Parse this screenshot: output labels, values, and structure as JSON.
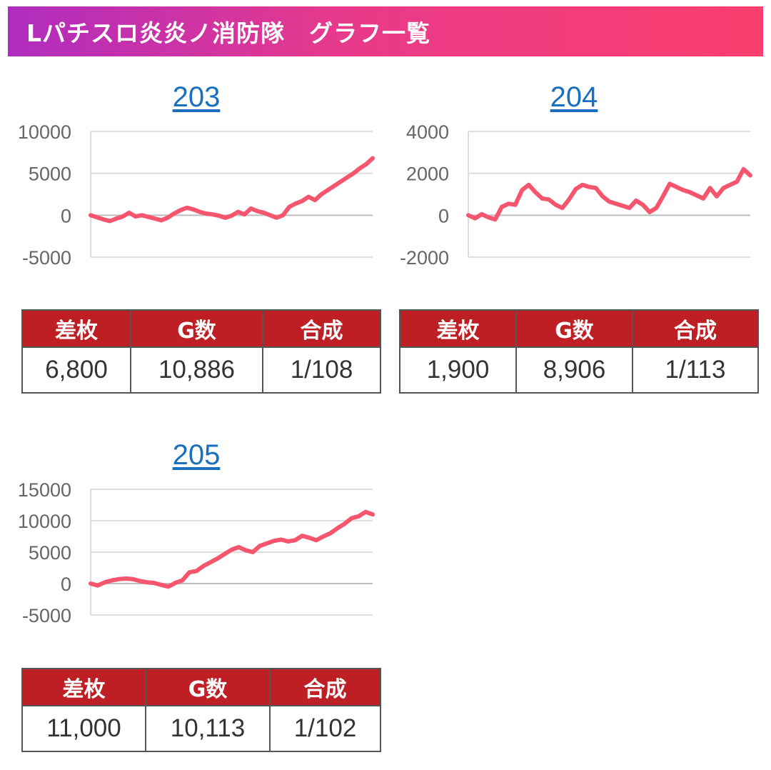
{
  "header": {
    "title": "Lパチスロ炎炎ノ消防隊　グラフ一覧"
  },
  "table_headers": {
    "diff": "差枚",
    "games": "G数",
    "combined": "合成"
  },
  "colors": {
    "header_gradient_start": "#b02cc0",
    "header_gradient_end": "#fa3f6e",
    "line": "#f5566e",
    "table_header": "#be1f24",
    "link": "#1a6fbf"
  },
  "machines": [
    {
      "number": "203",
      "stats": {
        "diff": "6,800",
        "games": "10,886",
        "combined": "1/108"
      }
    },
    {
      "number": "204",
      "stats": {
        "diff": "1,900",
        "games": "8,906",
        "combined": "1/113"
      }
    },
    {
      "number": "205",
      "stats": {
        "diff": "11,000",
        "games": "10,113",
        "combined": "1/102"
      }
    }
  ],
  "chart_data": [
    {
      "type": "line",
      "title": "203",
      "ylim": [
        -5000,
        10000
      ],
      "yticks": [
        -5000,
        0,
        5000,
        10000
      ],
      "grid": true,
      "legend": "none",
      "values": [
        0,
        -250,
        -500,
        -700,
        -400,
        -150,
        300,
        -150,
        0,
        -200,
        -400,
        -600,
        -300,
        200,
        600,
        900,
        700,
        400,
        200,
        100,
        -50,
        -300,
        -50,
        400,
        100,
        800,
        500,
        300,
        0,
        -300,
        0,
        1000,
        1400,
        1700,
        2200,
        1800,
        2500,
        3000,
        3500,
        4000,
        4500,
        5000,
        5600,
        6100,
        6800
      ]
    },
    {
      "type": "line",
      "title": "204",
      "ylim": [
        -2000,
        4000
      ],
      "yticks": [
        -2000,
        0,
        2000,
        4000
      ],
      "grid": true,
      "legend": "none",
      "values": [
        0,
        -150,
        50,
        -100,
        -200,
        400,
        550,
        500,
        1200,
        1450,
        1100,
        800,
        750,
        500,
        350,
        750,
        1250,
        1450,
        1350,
        1300,
        900,
        650,
        550,
        450,
        350,
        700,
        500,
        150,
        350,
        900,
        1500,
        1350,
        1200,
        1100,
        950,
        800,
        1300,
        900,
        1300,
        1450,
        1600,
        2200,
        1900
      ]
    },
    {
      "type": "line",
      "title": "205",
      "ylim": [
        -5000,
        15000
      ],
      "yticks": [
        -5000,
        0,
        5000,
        10000,
        15000
      ],
      "grid": true,
      "legend": "none",
      "values": [
        0,
        -300,
        200,
        500,
        700,
        800,
        700,
        400,
        200,
        100,
        -200,
        -500,
        100,
        500,
        1800,
        2000,
        2800,
        3400,
        4000,
        4700,
        5400,
        5800,
        5300,
        5000,
        6000,
        6400,
        6800,
        7000,
        6700,
        6900,
        7600,
        7300,
        6900,
        7500,
        8000,
        8800,
        9500,
        10400,
        10700,
        11400,
        11000
      ]
    }
  ]
}
